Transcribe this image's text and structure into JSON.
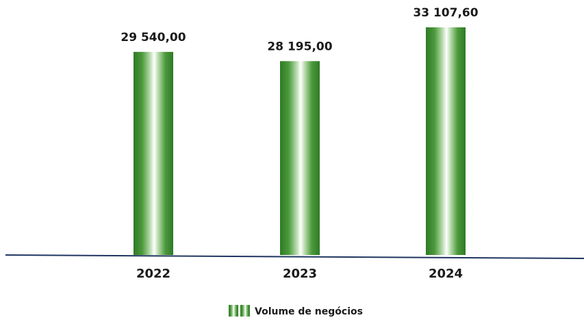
{
  "chart_data": {
    "type": "bar",
    "categories": [
      "2022",
      "2023",
      "2024"
    ],
    "series": [
      {
        "name": "Volume de negócios",
        "values": [
          29540.0,
          28195.0,
          33107.6
        ],
        "value_labels": [
          "29 540,00",
          "28 195,00",
          "33 107,60"
        ]
      }
    ],
    "ylim": [
      0,
      33107.6
    ],
    "grid": false,
    "legend_position": "bottom",
    "colors": {
      "bar_dark": "#2f7a25",
      "bar_mid": "#5aa94a",
      "bar_light": "#ffffff",
      "axis": "#1f3560"
    }
  }
}
